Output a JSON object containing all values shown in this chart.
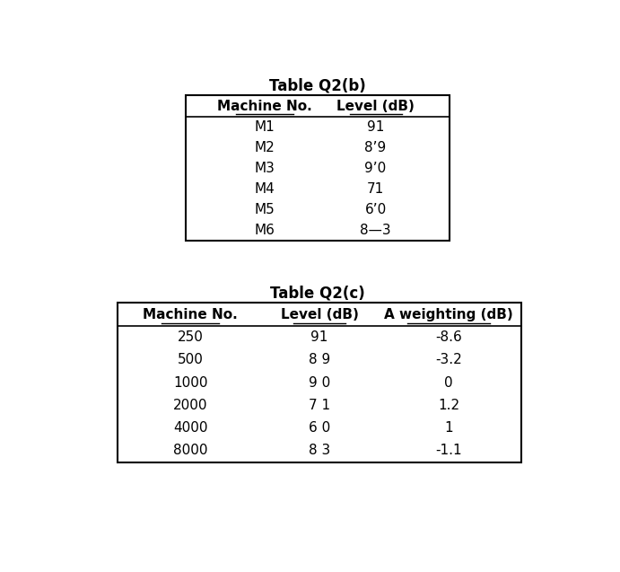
{
  "table_b_title": "Table Q2(b)",
  "table_b_headers": [
    "Machine No.",
    "Level (dB)"
  ],
  "table_b_rows": [
    [
      "M1",
      "91"
    ],
    [
      "M2",
      "8’9"
    ],
    [
      "M3",
      "9’0"
    ],
    [
      "M4",
      "71"
    ],
    [
      "M5",
      "6’0"
    ],
    [
      "M6",
      "8—3"
    ]
  ],
  "table_c_title": "Table Q2(c)",
  "table_c_headers": [
    "Machine No.",
    "Level (dB)",
    "A weighting (dB)"
  ],
  "table_c_rows": [
    [
      "250",
      "91",
      "-8.6"
    ],
    [
      "500",
      "8 9",
      "-3.2"
    ],
    [
      "1000",
      "9 0",
      "0"
    ],
    [
      "2000",
      "7 1",
      "1.2"
    ],
    [
      "4000",
      "6 0",
      "1"
    ],
    [
      "8000",
      "8 3",
      "-1.1"
    ]
  ],
  "bg_color": "#ffffff",
  "text_color": "#000000",
  "font_size": 11,
  "title_font_size": 12
}
